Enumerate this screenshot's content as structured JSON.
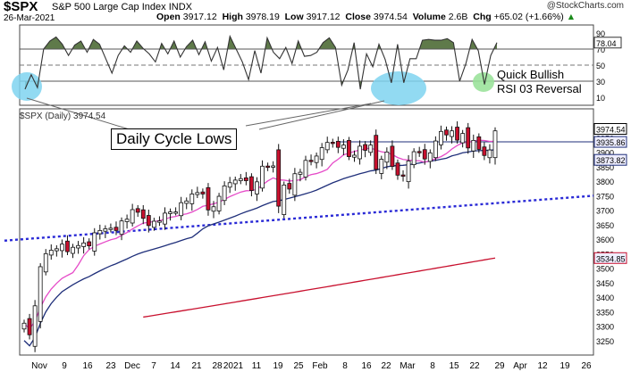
{
  "header": {
    "ticker": "$SPX",
    "index_name": "S&P 500 Large Cap Index",
    "exchange": "INDX",
    "date": "26-Mar-2021",
    "open_label": "Open",
    "open": "3917.12",
    "high_label": "High",
    "high": "3978.19",
    "low_label": "Low",
    "low": "3917.12",
    "close_label": "Close",
    "close": "3974.54",
    "volume_label": "Volume",
    "volume": "2.6B",
    "chg_label": "Chg",
    "chg": "+65.02 (+1.66%)",
    "chg_arrow": "▲",
    "brand": "@StockCharts.com"
  },
  "annotations": {
    "cycle_lows": "Daily Cycle Lows",
    "rsi_line1": "Quick Bullish",
    "rsi_line2": "RSI 03 Reversal"
  },
  "colors": {
    "up": "#ffffff",
    "down": "#c8102e",
    "rsi_fill": "#5f7a4a",
    "sma_short": "#e64bc8",
    "sma_mid": "#1f2f7a",
    "sma_long": "#c8102e",
    "trend": "#2a2ad6",
    "highlight": "#7fd4f0",
    "highlight_green": "#9be29b"
  },
  "chart_data": [
    {
      "type": "line",
      "title": "RSI",
      "ylim": [
        0,
        100
      ],
      "yticks": [
        90,
        70,
        50,
        30,
        10
      ],
      "last_label": "78.04",
      "overbought": 70,
      "oversold": 30,
      "values": [
        20,
        38,
        22,
        70,
        80,
        85,
        76,
        62,
        75,
        80,
        66,
        82,
        76,
        58,
        40,
        62,
        74,
        66,
        80,
        71,
        64,
        54,
        77,
        64,
        80,
        60,
        73,
        81,
        63,
        79,
        55,
        72,
        44,
        86,
        70,
        54,
        32,
        68,
        40,
        84,
        66,
        58,
        72,
        52,
        80,
        61,
        62,
        66,
        78,
        84,
        72,
        25,
        44,
        78,
        20,
        64,
        48,
        76,
        57,
        28,
        76,
        28,
        58,
        58,
        81,
        82,
        81,
        81,
        83,
        78,
        30,
        52,
        82,
        68,
        26,
        62,
        78
      ]
    },
    {
      "type": "line",
      "title": "$SPX (Daily)",
      "last_price": "3974.54",
      "ylim": [
        3200,
        4050
      ],
      "yticks": [
        3250,
        3300,
        3350,
        3400,
        3450,
        3500,
        3550,
        3600,
        3650,
        3700,
        3750,
        3800,
        3850,
        3900,
        3950
      ],
      "price_tags": [
        "3974.54",
        "3935.86",
        "3873.82",
        "3534.85"
      ],
      "x_labels": [
        "Nov",
        "9",
        "16",
        "23",
        "Dec",
        "7",
        "14",
        "21",
        "28",
        "2021",
        "11",
        "19",
        "25",
        "Feb",
        "8",
        "16",
        "22",
        "Mar",
        "8",
        "15",
        "22",
        "29",
        "Apr",
        "12",
        "19",
        "26"
      ],
      "close": [
        3310,
        3270,
        3370,
        3505,
        3550,
        3562,
        3567,
        3583,
        3557,
        3572,
        3578,
        3587,
        3577,
        3622,
        3630,
        3636,
        3638,
        3630,
        3663,
        3669,
        3702,
        3693,
        3672,
        3647,
        3662,
        3663,
        3690,
        3694,
        3694,
        3726,
        3732,
        3756,
        3761,
        3756,
        3701,
        3712,
        3748,
        3784,
        3795,
        3804,
        3809,
        3802,
        3768,
        3798,
        3852,
        3851,
        3853,
        3714,
        3787,
        3773,
        3826,
        3831,
        3872,
        3871,
        3887,
        3916,
        3934,
        3932,
        3917,
        3925,
        3885,
        3890,
        3921,
        3907,
        3925,
        3841,
        3876,
        3901,
        3851,
        3821,
        3819,
        3870,
        3902,
        3900,
        3877,
        3898,
        3939,
        3972,
        3960,
        3974,
        3942,
        3965,
        3915,
        3941,
        3910,
        3889,
        3908,
        3974
      ],
      "sma_long_start": 3268,
      "sma_long_end": 3535
    }
  ]
}
